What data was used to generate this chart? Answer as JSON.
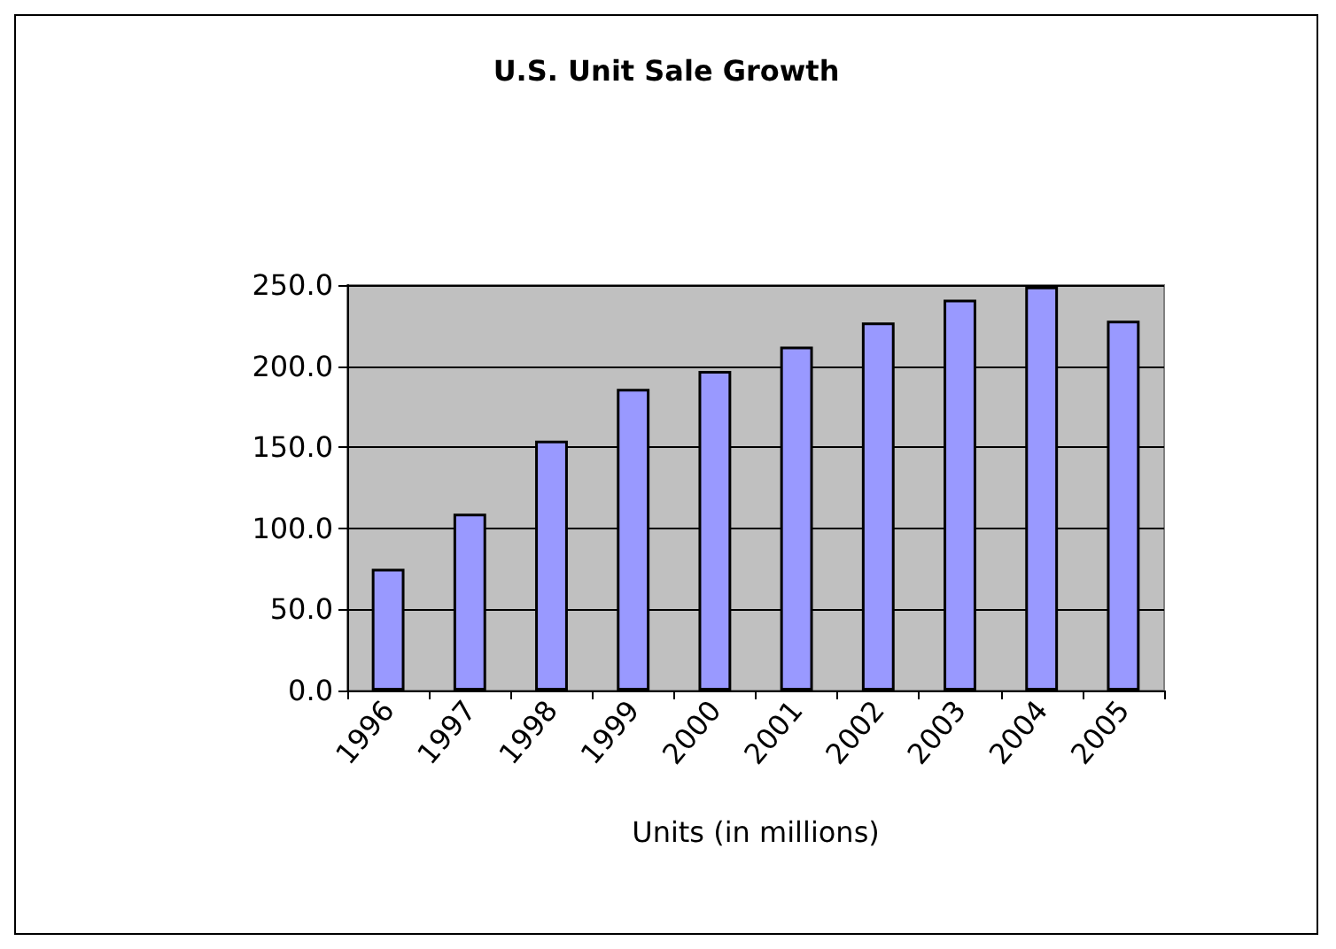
{
  "chart_data": {
    "type": "bar",
    "title": "U.S. Unit Sale Growth",
    "xlabel": "Units (in millions)",
    "categories": [
      "1996",
      "1997",
      "1998",
      "1999",
      "2000",
      "2001",
      "2002",
      "2003",
      "2004",
      "2005"
    ],
    "values": [
      75,
      109,
      154,
      186,
      197,
      212,
      227,
      241,
      249,
      228
    ],
    "color": "#9999ff",
    "ylim": [
      0,
      250
    ],
    "yticks": [
      {
        "value": 0,
        "label": "0.0"
      },
      {
        "value": 50,
        "label": "50.0"
      },
      {
        "value": 100,
        "label": "100.0"
      },
      {
        "value": 150,
        "label": "150.0"
      },
      {
        "value": 200,
        "label": "200.0"
      },
      {
        "value": 250,
        "label": "250.0"
      }
    ],
    "grid": "y"
  }
}
